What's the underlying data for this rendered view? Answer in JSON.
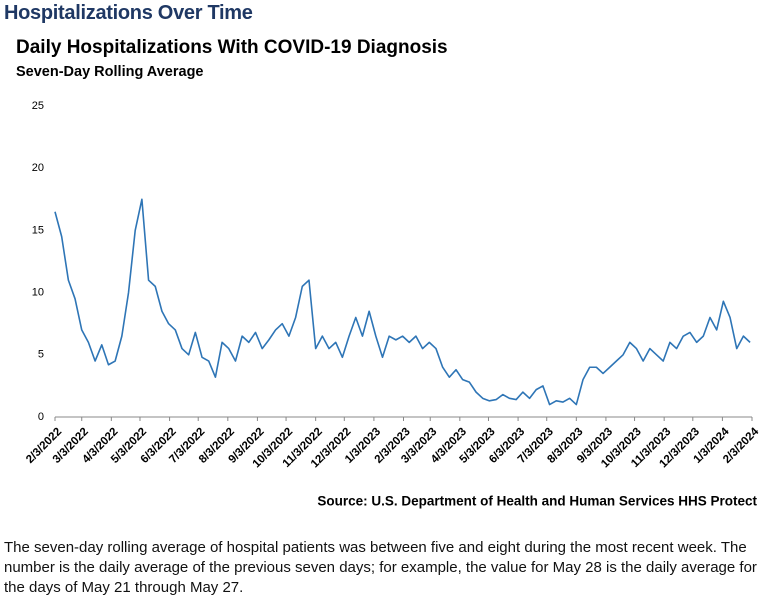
{
  "page_title": "Hospitalizations Over Time",
  "chart_data": {
    "type": "line",
    "title": "Daily Hospitalizations With COVID-19 Diagnosis",
    "subtitle": "Seven-Day Rolling Average",
    "source": "Source: U.S. Department of Health and Human Services HHS Protect",
    "x": [
      "2022-02-03",
      "2022-02-10",
      "2022-02-17",
      "2022-02-24",
      "2022-03-03",
      "2022-03-10",
      "2022-03-17",
      "2022-03-24",
      "2022-03-31",
      "2022-04-07",
      "2022-04-14",
      "2022-04-21",
      "2022-04-28",
      "2022-05-05",
      "2022-05-12",
      "2022-05-19",
      "2022-05-26",
      "2022-06-02",
      "2022-06-09",
      "2022-06-16",
      "2022-06-23",
      "2022-06-30",
      "2022-07-07",
      "2022-07-14",
      "2022-07-21",
      "2022-07-28",
      "2022-08-04",
      "2022-08-11",
      "2022-08-18",
      "2022-08-25",
      "2022-09-01",
      "2022-09-08",
      "2022-09-15",
      "2022-09-22",
      "2022-09-29",
      "2022-10-06",
      "2022-10-13",
      "2022-10-20",
      "2022-10-27",
      "2022-11-03",
      "2022-11-10",
      "2022-11-17",
      "2022-11-24",
      "2022-12-01",
      "2022-12-08",
      "2022-12-15",
      "2022-12-22",
      "2022-12-29",
      "2023-01-05",
      "2023-01-12",
      "2023-01-19",
      "2023-01-26",
      "2023-02-02",
      "2023-02-09",
      "2023-02-16",
      "2023-02-23",
      "2023-03-02",
      "2023-03-09",
      "2023-03-16",
      "2023-03-23",
      "2023-03-30",
      "2023-04-06",
      "2023-04-13",
      "2023-04-20",
      "2023-04-27",
      "2023-05-04",
      "2023-05-11",
      "2023-05-18",
      "2023-05-25",
      "2023-06-01",
      "2023-06-08",
      "2023-06-15",
      "2023-06-22",
      "2023-06-29",
      "2023-07-06",
      "2023-07-13",
      "2023-07-20",
      "2023-07-27",
      "2023-08-03",
      "2023-08-10",
      "2023-08-17",
      "2023-08-24",
      "2023-08-31",
      "2023-09-07",
      "2023-09-14",
      "2023-09-21",
      "2023-09-28",
      "2023-10-05",
      "2023-10-12",
      "2023-10-19",
      "2023-10-26",
      "2023-11-02",
      "2023-11-09",
      "2023-11-16",
      "2023-11-23",
      "2023-11-30",
      "2023-12-07",
      "2023-12-14",
      "2023-12-21",
      "2023-12-28",
      "2024-01-04",
      "2024-01-11",
      "2024-01-18",
      "2024-01-25",
      "2024-02-01"
    ],
    "series": [
      {
        "color": "#2e75b6",
        "values": [
          16.5,
          14.5,
          11,
          9.5,
          7,
          6,
          4.5,
          5.8,
          4.2,
          4.5,
          6.5,
          10,
          15,
          17.5,
          11,
          10.5,
          8.5,
          7.5,
          7,
          5.5,
          5,
          6.8,
          4.8,
          4.5,
          3.2,
          6,
          5.5,
          4.5,
          6.5,
          6,
          6.8,
          5.5,
          6.2,
          7,
          7.5,
          6.5,
          8,
          10.5,
          11,
          5.5,
          6.5,
          5.5,
          6,
          4.8,
          6.5,
          8,
          6.5,
          8.5,
          6.5,
          4.8,
          6.5,
          6.2,
          6.5,
          6,
          6.5,
          5.5,
          6,
          5.5,
          4,
          3.2,
          3.8,
          3,
          2.8,
          2,
          1.5,
          1.3,
          1.4,
          1.8,
          1.5,
          1.4,
          2,
          1.5,
          2.2,
          2.5,
          1,
          1.3,
          1.2,
          1.5,
          1,
          3,
          4,
          4,
          3.5,
          4,
          4.5,
          5,
          6,
          5.5,
          4.5,
          5.5,
          5,
          4.5,
          6,
          5.5,
          6.5,
          6.8,
          6,
          6.5,
          8,
          7,
          9.3,
          8,
          5.5,
          6.5,
          6
        ]
      }
    ],
    "xlim": [
      "2022-02-03",
      "2024-02-03"
    ],
    "xticks": [
      {
        "value": "2022-02-03",
        "label": "2/3/2022"
      },
      {
        "value": "2022-03-03",
        "label": "3/3/2022"
      },
      {
        "value": "2022-04-03",
        "label": "4/3/2022"
      },
      {
        "value": "2022-05-03",
        "label": "5/3/2022"
      },
      {
        "value": "2022-06-03",
        "label": "6/3/2022"
      },
      {
        "value": "2022-07-03",
        "label": "7/3/2022"
      },
      {
        "value": "2022-08-03",
        "label": "8/3/2022"
      },
      {
        "value": "2022-09-03",
        "label": "9/3/2022"
      },
      {
        "value": "2022-10-03",
        "label": "10/3/2022"
      },
      {
        "value": "2022-11-03",
        "label": "11/3/2022"
      },
      {
        "value": "2022-12-03",
        "label": "12/3/2022"
      },
      {
        "value": "2023-01-03",
        "label": "1/3/2023"
      },
      {
        "value": "2023-02-03",
        "label": "2/3/2023"
      },
      {
        "value": "2023-03-03",
        "label": "3/3/2023"
      },
      {
        "value": "2023-04-03",
        "label": "4/3/2023"
      },
      {
        "value": "2023-05-03",
        "label": "5/3/2023"
      },
      {
        "value": "2023-06-03",
        "label": "6/3/2023"
      },
      {
        "value": "2023-07-03",
        "label": "7/3/2023"
      },
      {
        "value": "2023-08-03",
        "label": "8/3/2023"
      },
      {
        "value": "2023-09-03",
        "label": "9/3/2023"
      },
      {
        "value": "2023-10-03",
        "label": "10/3/2023"
      },
      {
        "value": "2023-11-03",
        "label": "11/3/2023"
      },
      {
        "value": "2023-12-03",
        "label": "12/3/2023"
      },
      {
        "value": "2024-01-03",
        "label": "1/3/2024"
      },
      {
        "value": "2024-02-03",
        "label": "2/3/2024"
      }
    ],
    "ylim": [
      0,
      25
    ],
    "yticks": [
      0,
      5,
      10,
      15,
      20,
      25
    ],
    "grid": false
  },
  "description": "The seven-day rolling average of hospital patients was between five and eight during the most recent week. The number is the daily average of the previous seven days; for example, the value for May 28 is the daily average for the days of May 21 through May 27."
}
